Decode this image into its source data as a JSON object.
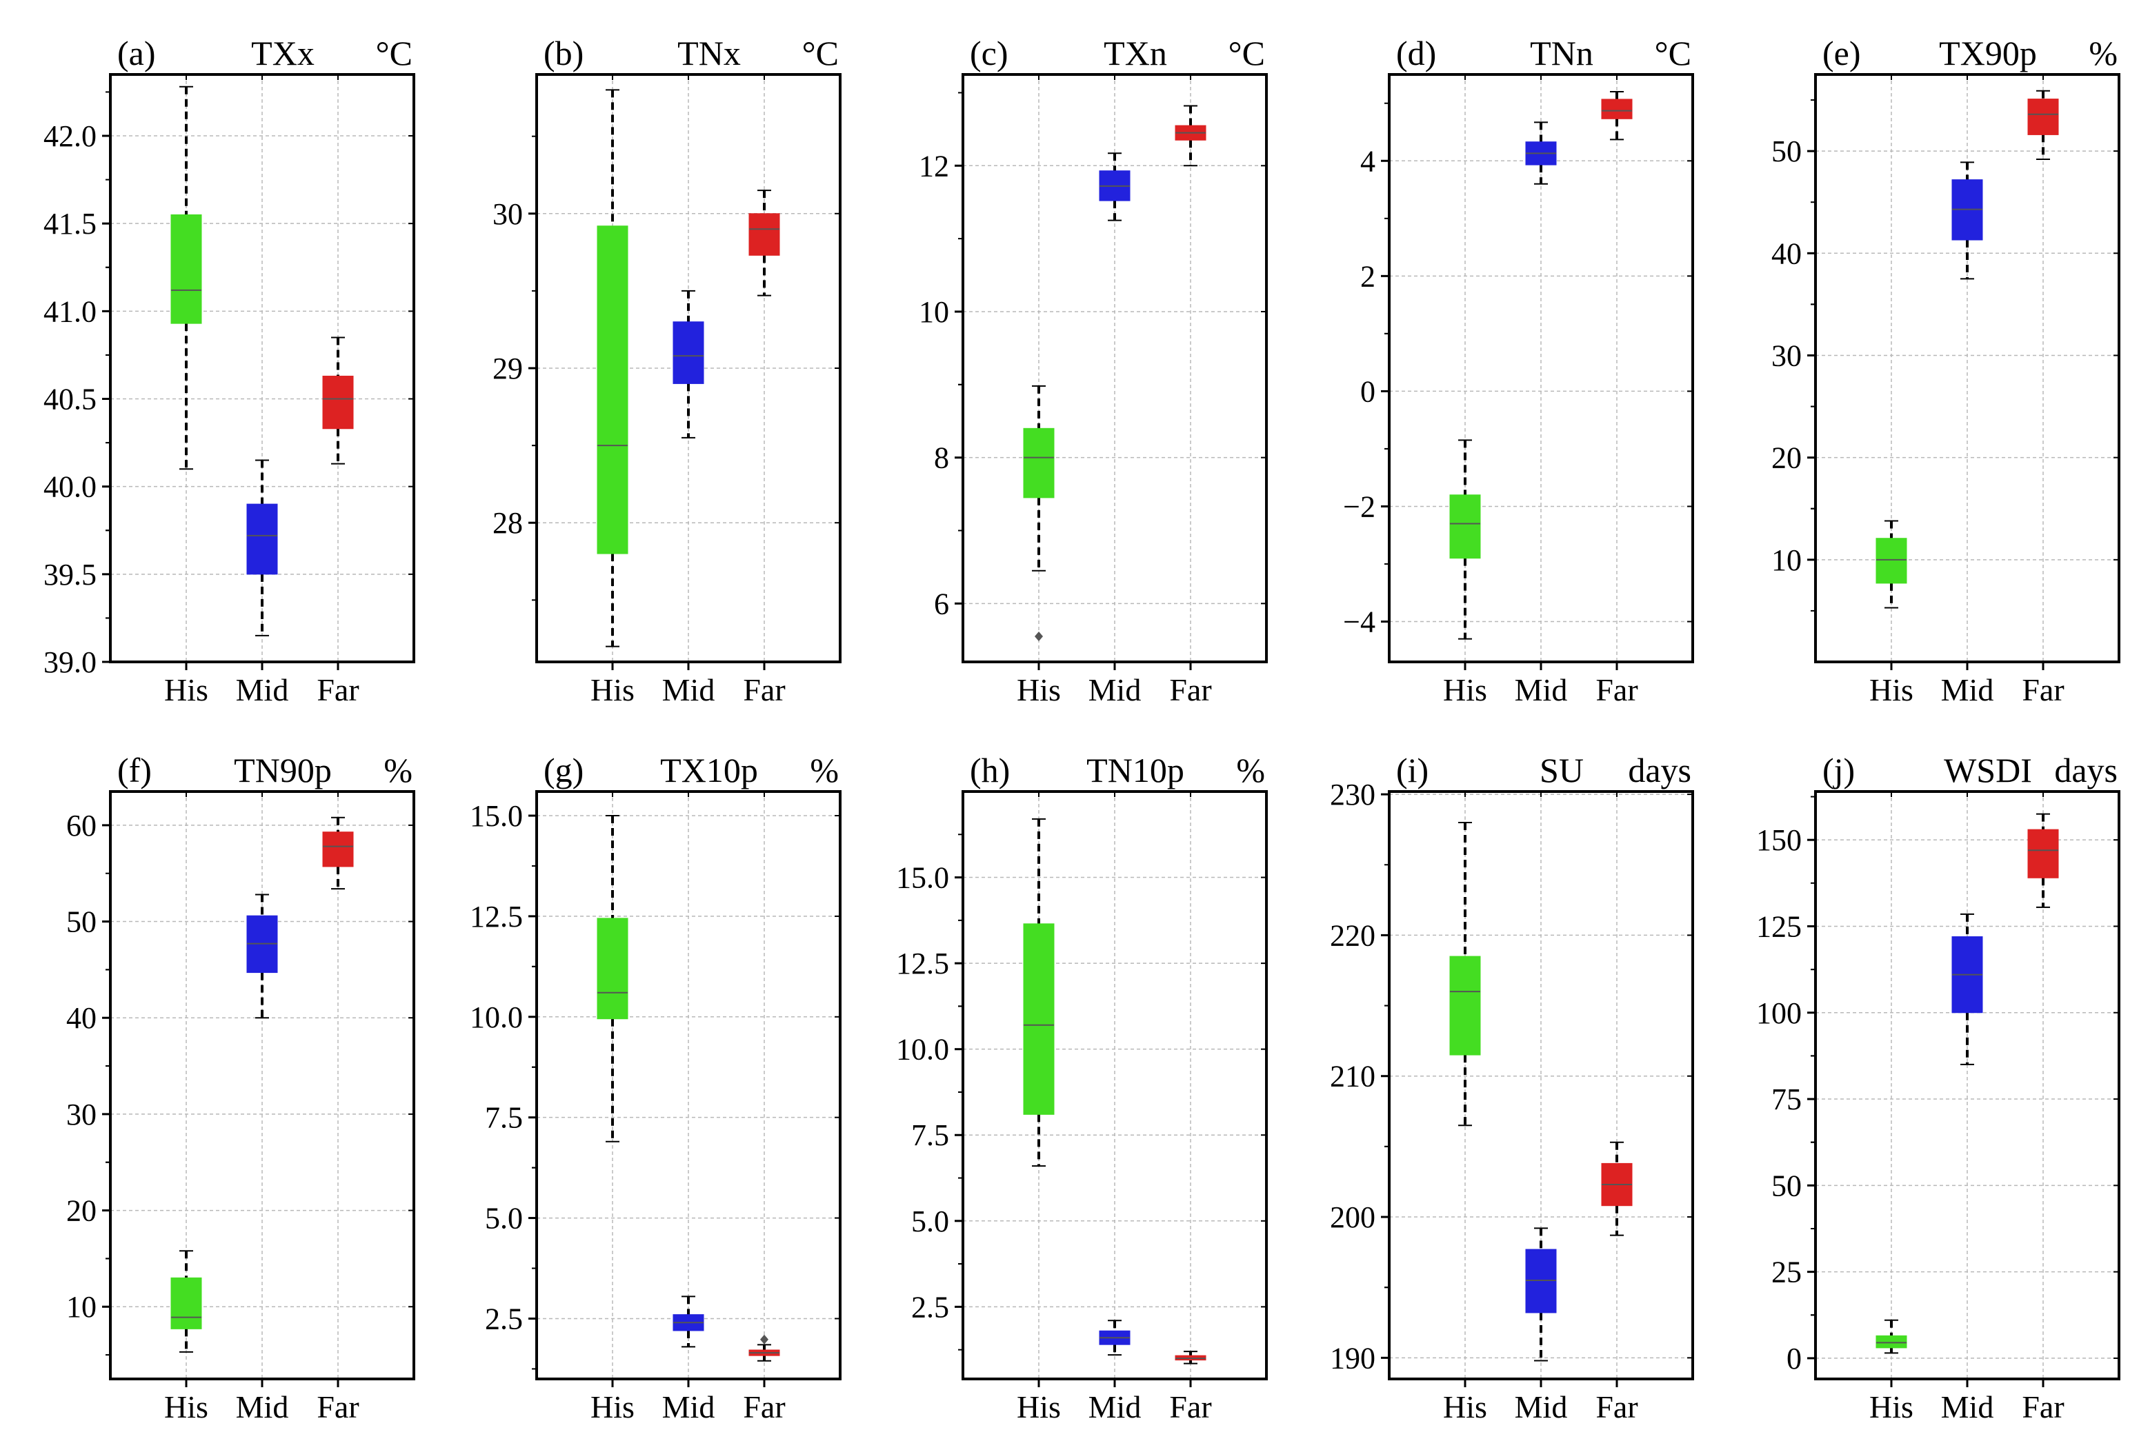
{
  "chart_data": [
    {
      "panel": "(a)",
      "title": "TXx",
      "unit": "°C",
      "type": "box",
      "categories": [
        "His",
        "Mid",
        "Far"
      ],
      "ylim": [
        39.0,
        42.35
      ],
      "yticks": [
        39.0,
        39.5,
        40.0,
        40.5,
        41.0,
        41.5,
        42.0
      ],
      "ytick_labels": [
        "39.0",
        "39.5",
        "40.0",
        "40.5",
        "41.0",
        "41.5",
        "42.0"
      ],
      "boxes": [
        {
          "min": 40.1,
          "q1": 40.93,
          "median": 41.12,
          "q3": 41.55,
          "max": 42.28,
          "outliers": []
        },
        {
          "min": 39.15,
          "q1": 39.5,
          "median": 39.72,
          "q3": 39.9,
          "max": 40.15,
          "outliers": []
        },
        {
          "min": 40.13,
          "q1": 40.33,
          "median": 40.5,
          "q3": 40.63,
          "max": 40.85,
          "outliers": []
        }
      ]
    },
    {
      "panel": "(b)",
      "title": "TNx",
      "unit": "°C",
      "type": "box",
      "categories": [
        "His",
        "Mid",
        "Far"
      ],
      "ylim": [
        27.1,
        30.9
      ],
      "yticks": [
        28,
        29,
        30
      ],
      "ytick_labels": [
        "28",
        "29",
        "30"
      ],
      "boxes": [
        {
          "min": 27.2,
          "q1": 27.8,
          "median": 28.5,
          "q3": 29.92,
          "max": 30.8,
          "outliers": []
        },
        {
          "min": 28.55,
          "q1": 28.9,
          "median": 29.08,
          "q3": 29.3,
          "max": 29.5,
          "outliers": []
        },
        {
          "min": 29.47,
          "q1": 29.73,
          "median": 29.9,
          "q3": 30.0,
          "max": 30.15,
          "outliers": []
        }
      ]
    },
    {
      "panel": "(c)",
      "title": "TXn",
      "unit": "°C",
      "type": "box",
      "categories": [
        "His",
        "Mid",
        "Far"
      ],
      "ylim": [
        5.2,
        13.25
      ],
      "yticks": [
        6,
        8,
        10,
        12
      ],
      "ytick_labels": [
        "6",
        "8",
        "10",
        "12"
      ],
      "boxes": [
        {
          "min": 6.45,
          "q1": 7.45,
          "median": 8.0,
          "q3": 8.4,
          "max": 8.98,
          "outliers": [
            5.55
          ]
        },
        {
          "min": 11.25,
          "q1": 11.52,
          "median": 11.72,
          "q3": 11.93,
          "max": 12.17,
          "outliers": []
        },
        {
          "min": 12.0,
          "q1": 12.35,
          "median": 12.45,
          "q3": 12.55,
          "max": 12.82,
          "outliers": []
        }
      ]
    },
    {
      "panel": "(d)",
      "title": "TNn",
      "unit": "°C",
      "type": "box",
      "categories": [
        "His",
        "Mid",
        "Far"
      ],
      "ylim": [
        -4.7,
        5.5
      ],
      "yticks": [
        -4,
        -2,
        0,
        2,
        4
      ],
      "ytick_labels": [
        "−4",
        "−2",
        "0",
        "2",
        "4"
      ],
      "boxes": [
        {
          "min": -4.3,
          "q1": -2.9,
          "median": -2.3,
          "q3": -1.8,
          "max": -0.85,
          "outliers": []
        },
        {
          "min": 3.6,
          "q1": 3.93,
          "median": 4.13,
          "q3": 4.33,
          "max": 4.67,
          "outliers": []
        },
        {
          "min": 4.37,
          "q1": 4.73,
          "median": 4.87,
          "q3": 5.07,
          "max": 5.2,
          "outliers": []
        }
      ]
    },
    {
      "panel": "(e)",
      "title": "TX90p",
      "unit": "%",
      "type": "box",
      "categories": [
        "His",
        "Mid",
        "Far"
      ],
      "ylim": [
        0,
        57.5
      ],
      "yticks": [
        10,
        20,
        30,
        40,
        50
      ],
      "ytick_labels": [
        "10",
        "20",
        "30",
        "40",
        "50"
      ],
      "boxes": [
        {
          "min": 5.3,
          "q1": 7.7,
          "median": 10.0,
          "q3": 12.1,
          "max": 13.8,
          "outliers": []
        },
        {
          "min": 37.5,
          "q1": 41.3,
          "median": 44.3,
          "q3": 47.2,
          "max": 48.9,
          "outliers": []
        },
        {
          "min": 49.2,
          "q1": 51.6,
          "median": 53.6,
          "q3": 55.1,
          "max": 55.9,
          "outliers": []
        }
      ]
    },
    {
      "panel": "(f)",
      "title": "TN90p",
      "unit": "%",
      "type": "box",
      "categories": [
        "His",
        "Mid",
        "Far"
      ],
      "ylim": [
        2.5,
        63.5
      ],
      "yticks": [
        10,
        20,
        30,
        40,
        50,
        60
      ],
      "ytick_labels": [
        "10",
        "20",
        "30",
        "40",
        "50",
        "60"
      ],
      "boxes": [
        {
          "min": 5.3,
          "q1": 7.7,
          "median": 8.9,
          "q3": 13.0,
          "max": 15.8,
          "outliers": []
        },
        {
          "min": 40.0,
          "q1": 44.7,
          "median": 47.7,
          "q3": 50.6,
          "max": 52.8,
          "outliers": []
        },
        {
          "min": 53.4,
          "q1": 55.7,
          "median": 57.8,
          "q3": 59.3,
          "max": 60.8,
          "outliers": []
        }
      ]
    },
    {
      "panel": "(g)",
      "title": "TX10p",
      "unit": "%",
      "type": "box",
      "categories": [
        "His",
        "Mid",
        "Far"
      ],
      "ylim": [
        1.0,
        15.6
      ],
      "yticks": [
        2.5,
        5.0,
        7.5,
        10.0,
        12.5,
        15.0
      ],
      "ytick_labels": [
        "2.5",
        "5.0",
        "7.5",
        "10.0",
        "12.5",
        "15.0"
      ],
      "boxes": [
        {
          "min": 6.9,
          "q1": 9.95,
          "median": 10.6,
          "q3": 12.45,
          "max": 15.0,
          "outliers": []
        },
        {
          "min": 1.8,
          "q1": 2.2,
          "median": 2.4,
          "q3": 2.6,
          "max": 3.05,
          "outliers": []
        },
        {
          "min": 1.45,
          "q1": 1.58,
          "median": 1.65,
          "q3": 1.72,
          "max": 1.85,
          "outliers": [
            1.98
          ]
        }
      ]
    },
    {
      "panel": "(h)",
      "title": "TN10p",
      "unit": "%",
      "type": "box",
      "categories": [
        "His",
        "Mid",
        "Far"
      ],
      "ylim": [
        0.4,
        17.5
      ],
      "yticks": [
        2.5,
        5.0,
        7.5,
        10.0,
        12.5,
        15.0
      ],
      "ytick_labels": [
        "2.5",
        "5.0",
        "7.5",
        "10.0",
        "12.5",
        "15.0"
      ],
      "boxes": [
        {
          "min": 6.6,
          "q1": 8.1,
          "median": 10.7,
          "q3": 13.65,
          "max": 16.7,
          "outliers": []
        },
        {
          "min": 1.1,
          "q1": 1.4,
          "median": 1.6,
          "q3": 1.8,
          "max": 2.1,
          "outliers": []
        },
        {
          "min": 0.85,
          "q1": 0.95,
          "median": 1.0,
          "q3": 1.08,
          "max": 1.2,
          "outliers": []
        }
      ]
    },
    {
      "panel": "(i)",
      "title": "SU",
      "unit": "days",
      "type": "box",
      "categories": [
        "His",
        "Mid",
        "Far"
      ],
      "ylim": [
        188.5,
        230.2
      ],
      "yticks": [
        190,
        200,
        210,
        220,
        230
      ],
      "ytick_labels": [
        "190",
        "200",
        "210",
        "220",
        "230"
      ],
      "boxes": [
        {
          "min": 206.5,
          "q1": 211.5,
          "median": 216.0,
          "q3": 218.5,
          "max": 228.0,
          "outliers": []
        },
        {
          "min": 189.8,
          "q1": 193.2,
          "median": 195.5,
          "q3": 197.7,
          "max": 199.2,
          "outliers": []
        },
        {
          "min": 198.7,
          "q1": 200.8,
          "median": 202.3,
          "q3": 203.8,
          "max": 205.3,
          "outliers": []
        }
      ]
    },
    {
      "panel": "(j)",
      "title": "WSDI",
      "unit": "days",
      "type": "box",
      "categories": [
        "His",
        "Mid",
        "Far"
      ],
      "ylim": [
        -6,
        164
      ],
      "yticks": [
        0,
        25,
        50,
        75,
        100,
        125,
        150
      ],
      "ytick_labels": [
        "0",
        "25",
        "50",
        "75",
        "100",
        "125",
        "150"
      ],
      "boxes": [
        {
          "min": 1.5,
          "q1": 3.0,
          "median": 4.5,
          "q3": 6.5,
          "max": 11.0,
          "outliers": []
        },
        {
          "min": 85.0,
          "q1": 100.0,
          "median": 111.0,
          "q3": 122.0,
          "max": 128.5,
          "outliers": []
        },
        {
          "min": 130.5,
          "q1": 139.0,
          "median": 147.0,
          "q3": 153.0,
          "max": 157.5,
          "outliers": []
        }
      ]
    }
  ],
  "colors": {
    "His": "#44dd22",
    "Mid": "#2222dd",
    "Far": "#dd2222",
    "grid": "#b8b8b8",
    "axis": "#000000"
  }
}
